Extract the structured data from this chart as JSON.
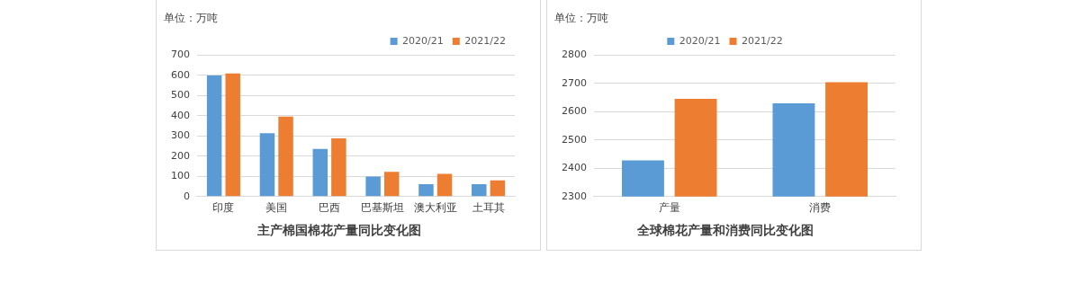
{
  "chart_data": [
    {
      "type": "bar",
      "title": "主产棉国棉花产量同比变化图",
      "ylabel": "单位：万吨",
      "categories": [
        "印度",
        "美国",
        "巴西",
        "巴基斯坦",
        "澳大利亚",
        "土耳其"
      ],
      "series": [
        {
          "name": "2020/21",
          "color": "#5b9bd5",
          "values": [
            600,
            314,
            236,
            99,
            61,
            61
          ]
        },
        {
          "name": "2021/22",
          "color": "#ed7d31",
          "values": [
            609,
            396,
            288,
            123,
            113,
            80
          ]
        }
      ],
      "ylim": [
        0,
        700
      ],
      "yticks": [
        0,
        100,
        200,
        300,
        400,
        500,
        600,
        700
      ],
      "grid": "y",
      "legend": "top right"
    },
    {
      "type": "bar",
      "title": "全球棉花产量和消费同比变化图",
      "ylabel": "单位：万吨",
      "categories": [
        "产量",
        "消费"
      ],
      "series": [
        {
          "name": "2020/21",
          "color": "#5b9bd5",
          "values": [
            2428,
            2630
          ]
        },
        {
          "name": "2021/22",
          "color": "#ed7d31",
          "values": [
            2646,
            2704
          ]
        }
      ],
      "ylim": [
        2300,
        2800
      ],
      "yticks": [
        2300,
        2400,
        2500,
        2600,
        2700,
        2800
      ],
      "grid": "y",
      "legend": "top"
    }
  ]
}
